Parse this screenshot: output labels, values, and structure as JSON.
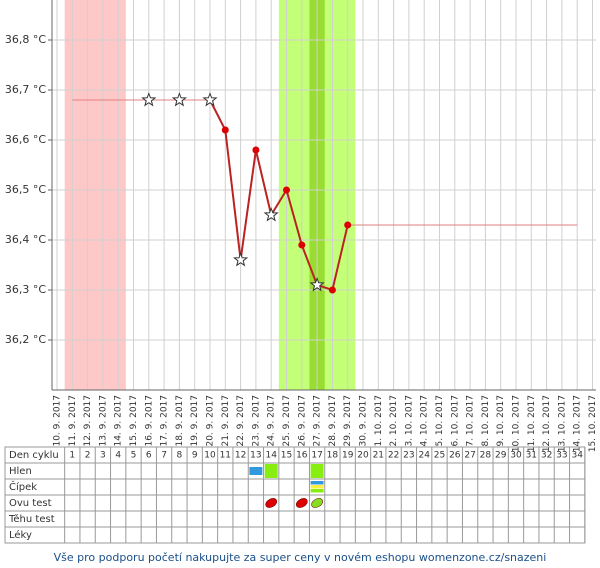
{
  "chart_data": {
    "type": "line",
    "categories": [
      "10. 9. 2017",
      "11. 9. 2017",
      "12. 9. 2017",
      "13. 9. 2017",
      "14. 9. 2017",
      "15. 9. 2017",
      "16. 9. 2017",
      "17. 9. 2017",
      "18. 9. 2017",
      "19. 9. 2017",
      "20. 9. 2017",
      "21. 9. 2017",
      "22. 9. 2017",
      "23. 9. 2017",
      "24. 9. 2017",
      "25. 9. 2017",
      "26. 9. 2017",
      "27. 9. 2017",
      "28. 9. 2017",
      "29. 9. 2017",
      "30. 9. 2017",
      "1. 10. 2017",
      "2. 10. 2017",
      "3. 10. 2017",
      "4. 10. 2017",
      "5. 10. 2017",
      "6. 10. 2017",
      "7. 10. 2017",
      "8. 10. 2017",
      "9. 10. 2017",
      "10. 10. 2017",
      "11. 10. 2017",
      "12. 10. 2017",
      "13. 10. 2017",
      "14. 10. 2017",
      "15. 10. 2017"
    ],
    "series": [
      {
        "color": "#bb2222",
        "line_width": 2,
        "values": [
          null,
          null,
          null,
          null,
          null,
          null,
          36.68,
          null,
          36.68,
          null,
          36.68,
          36.62,
          36.36,
          36.58,
          36.45,
          36.5,
          36.39,
          36.31,
          36.3,
          36.43,
          null,
          null,
          null,
          null,
          null,
          null,
          null,
          null,
          null,
          null,
          null,
          null,
          null,
          null,
          null,
          null
        ],
        "markers": [
          null,
          null,
          null,
          null,
          null,
          null,
          "star",
          null,
          "star",
          null,
          "star",
          "dot",
          "star",
          "dot",
          "star",
          "dot",
          "dot",
          "star",
          "dot",
          "dot",
          null,
          null,
          null,
          null,
          null,
          null,
          null,
          null,
          null,
          null,
          null,
          null,
          null,
          null,
          null,
          null
        ]
      },
      {
        "color": "#e08080",
        "line_width": 1,
        "values": [
          null,
          36.68,
          36.68,
          36.68,
          36.68,
          36.68,
          36.68,
          36.68,
          36.68,
          36.68,
          36.68,
          null,
          null,
          null,
          null,
          null,
          null,
          null,
          null,
          36.43,
          36.43,
          36.43,
          36.43,
          36.43,
          36.43,
          36.43,
          36.43,
          36.43,
          36.43,
          36.43,
          36.43,
          36.43,
          36.43,
          36.43,
          36.43,
          null
        ]
      }
    ],
    "bands": [
      {
        "from": "11. 9. 2017",
        "to": "14. 9. 2017",
        "color": "#ffc8c8"
      },
      {
        "from": "25. 9. 2017",
        "to": "29. 9. 2017",
        "color": "#c4ff78"
      },
      {
        "from": "27. 9. 2017",
        "to": "27. 9. 2017",
        "color": "#99dd33"
      }
    ],
    "ylim": [
      36.1,
      36.88
    ],
    "yticks": [
      {
        "value": 36.2,
        "label": "36,2 °C"
      },
      {
        "value": 36.3,
        "label": "36,3 °C"
      },
      {
        "value": 36.4,
        "label": "36,4 °C"
      },
      {
        "value": 36.5,
        "label": "36,5 °C"
      },
      {
        "value": 36.6,
        "label": "36,6 °C"
      },
      {
        "value": 36.7,
        "label": "36,7 °C"
      },
      {
        "value": 36.8,
        "label": "36,8 °C"
      }
    ],
    "grid": true
  },
  "cycle_table": {
    "row_labels": [
      "Den cyklu",
      "Hlen",
      "Čípek",
      "Ovu test",
      "Těhu test",
      "Léky"
    ],
    "days": [
      1,
      2,
      3,
      4,
      5,
      6,
      7,
      8,
      9,
      10,
      11,
      12,
      13,
      14,
      15,
      16,
      17,
      18,
      19,
      20,
      21,
      22,
      23,
      24,
      25,
      26,
      27,
      28,
      29,
      30,
      31,
      32,
      33,
      34
    ],
    "marks": [
      {
        "row": 1,
        "day": 13,
        "kind": "block-small",
        "color": "#3399dd"
      },
      {
        "row": 1,
        "day": 14,
        "kind": "block",
        "color": "#88ee11"
      },
      {
        "row": 1,
        "day": 17,
        "kind": "block",
        "color": "#88ee11"
      },
      {
        "row": 2,
        "day": 17,
        "kind": "stripes",
        "color": "#88ee11"
      },
      {
        "row": 3,
        "day": 14,
        "kind": "leaf",
        "color": "#dd0000"
      },
      {
        "row": 3,
        "day": 16,
        "kind": "leaf",
        "color": "#dd0000"
      },
      {
        "row": 3,
        "day": 17,
        "kind": "leaf",
        "color": "#88dd22"
      }
    ]
  },
  "footer": "Vše pro podporu početí nakupujte za super ceny v novém eshopu womenzone.cz/snazeni"
}
